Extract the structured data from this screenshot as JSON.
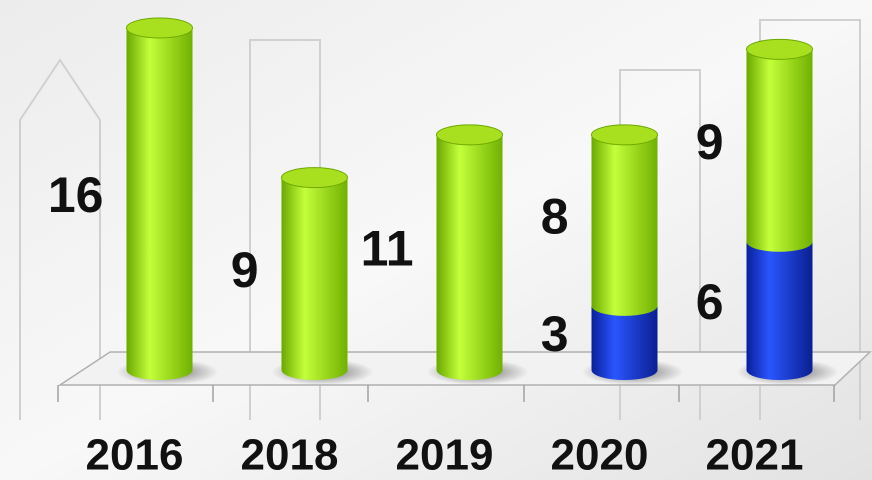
{
  "chart_data": {
    "type": "bar",
    "stacked": true,
    "categories": [
      "2016",
      "2018",
      "2019",
      "2020",
      "2021"
    ],
    "series": [
      {
        "color": "#1a3ff0",
        "values": [
          null,
          null,
          null,
          3,
          6
        ]
      },
      {
        "color": "#9ee81a",
        "values": [
          16,
          9,
          11,
          8,
          9
        ]
      }
    ]
  }
}
